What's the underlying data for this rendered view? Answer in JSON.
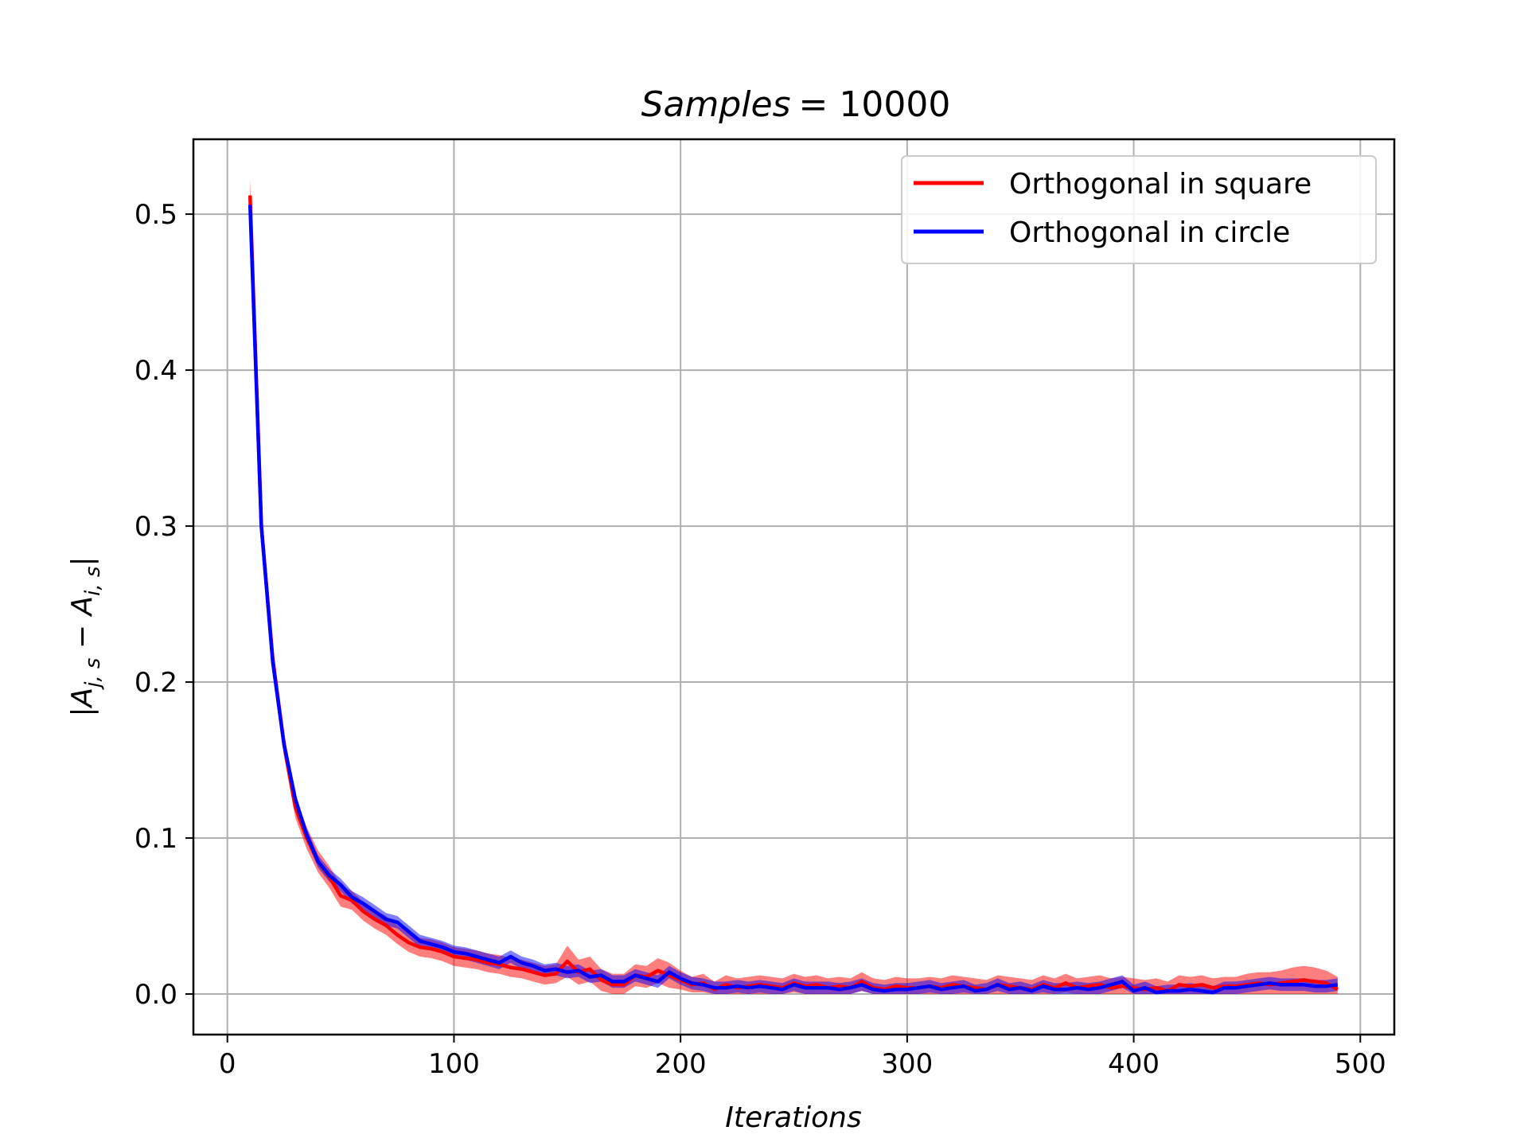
{
  "chart_data": {
    "type": "line",
    "title": "Samples = 10000",
    "title_math_var": "Samples",
    "title_value": "= 10000",
    "xlabel": "Iterations",
    "ylabel": "|A_{j,s} − A_{i,s}|",
    "ylabel_parts": {
      "open": "|A",
      "sub1": "j, s",
      "mid": " − A",
      "sub2": "i, s",
      "close": "|"
    },
    "xlim": [
      -15,
      515
    ],
    "ylim": [
      -0.026,
      0.548
    ],
    "xticks": [
      0,
      100,
      200,
      300,
      400,
      500
    ],
    "yticks": [
      0.0,
      0.1,
      0.2,
      0.3,
      0.4,
      0.5
    ],
    "ytick_labels": [
      "0.0",
      "0.1",
      "0.2",
      "0.3",
      "0.4",
      "0.5"
    ],
    "grid": true,
    "legend_position": "top-right",
    "x": [
      10,
      15,
      20,
      25,
      30,
      35,
      40,
      45,
      50,
      55,
      60,
      65,
      70,
      75,
      80,
      85,
      90,
      95,
      100,
      105,
      110,
      115,
      120,
      125,
      130,
      135,
      140,
      145,
      150,
      155,
      160,
      165,
      170,
      175,
      180,
      185,
      190,
      195,
      200,
      205,
      210,
      215,
      220,
      225,
      230,
      235,
      240,
      245,
      250,
      255,
      260,
      265,
      270,
      275,
      280,
      285,
      290,
      295,
      300,
      305,
      310,
      315,
      320,
      325,
      330,
      335,
      340,
      345,
      350,
      355,
      360,
      365,
      370,
      375,
      380,
      385,
      390,
      395,
      400,
      405,
      410,
      415,
      420,
      425,
      430,
      435,
      440,
      445,
      450,
      455,
      460,
      465,
      470,
      475,
      480,
      485,
      490
    ],
    "series": [
      {
        "name": "Orthogonal in square",
        "color": "#ff0000",
        "values": [
          0.512,
          0.3,
          0.215,
          0.16,
          0.12,
          0.1,
          0.085,
          0.075,
          0.063,
          0.06,
          0.053,
          0.048,
          0.044,
          0.038,
          0.033,
          0.03,
          0.029,
          0.027,
          0.024,
          0.023,
          0.022,
          0.02,
          0.019,
          0.017,
          0.016,
          0.014,
          0.012,
          0.013,
          0.021,
          0.014,
          0.016,
          0.009,
          0.006,
          0.006,
          0.012,
          0.011,
          0.015,
          0.012,
          0.009,
          0.006,
          0.007,
          0.003,
          0.006,
          0.004,
          0.005,
          0.006,
          0.005,
          0.004,
          0.007,
          0.005,
          0.006,
          0.004,
          0.005,
          0.004,
          0.008,
          0.004,
          0.003,
          0.005,
          0.004,
          0.004,
          0.005,
          0.004,
          0.006,
          0.005,
          0.004,
          0.003,
          0.006,
          0.005,
          0.004,
          0.003,
          0.006,
          0.004,
          0.007,
          0.004,
          0.005,
          0.006,
          0.004,
          0.005,
          0.004,
          0.003,
          0.004,
          0.002,
          0.006,
          0.005,
          0.006,
          0.004,
          0.005,
          0.005,
          0.006,
          0.007,
          0.006,
          0.007,
          0.008,
          0.009,
          0.008,
          0.007,
          0.003
        ],
        "band": [
          0.011,
          0.008,
          0.009,
          0.008,
          0.007,
          0.007,
          0.007,
          0.007,
          0.007,
          0.006,
          0.006,
          0.006,
          0.006,
          0.006,
          0.006,
          0.006,
          0.006,
          0.006,
          0.006,
          0.006,
          0.006,
          0.006,
          0.006,
          0.006,
          0.006,
          0.006,
          0.006,
          0.006,
          0.01,
          0.008,
          0.008,
          0.007,
          0.007,
          0.007,
          0.007,
          0.007,
          0.008,
          0.008,
          0.006,
          0.005,
          0.006,
          0.005,
          0.006,
          0.006,
          0.006,
          0.006,
          0.006,
          0.006,
          0.006,
          0.006,
          0.006,
          0.006,
          0.006,
          0.006,
          0.006,
          0.006,
          0.006,
          0.006,
          0.006,
          0.006,
          0.006,
          0.006,
          0.006,
          0.006,
          0.006,
          0.006,
          0.006,
          0.006,
          0.006,
          0.006,
          0.006,
          0.006,
          0.006,
          0.006,
          0.006,
          0.006,
          0.006,
          0.006,
          0.006,
          0.006,
          0.006,
          0.006,
          0.006,
          0.006,
          0.006,
          0.006,
          0.006,
          0.006,
          0.007,
          0.007,
          0.008,
          0.008,
          0.009,
          0.009,
          0.009,
          0.008,
          0.008
        ]
      },
      {
        "name": "Orthogonal in circle",
        "color": "#0000ff",
        "values": [
          0.506,
          0.3,
          0.213,
          0.16,
          0.125,
          0.102,
          0.085,
          0.076,
          0.07,
          0.062,
          0.058,
          0.053,
          0.048,
          0.046,
          0.04,
          0.034,
          0.032,
          0.03,
          0.027,
          0.026,
          0.024,
          0.022,
          0.02,
          0.024,
          0.02,
          0.018,
          0.015,
          0.016,
          0.014,
          0.015,
          0.011,
          0.012,
          0.008,
          0.008,
          0.012,
          0.01,
          0.008,
          0.014,
          0.01,
          0.007,
          0.006,
          0.004,
          0.004,
          0.005,
          0.004,
          0.005,
          0.004,
          0.003,
          0.006,
          0.004,
          0.004,
          0.004,
          0.003,
          0.004,
          0.006,
          0.003,
          0.002,
          0.003,
          0.003,
          0.004,
          0.005,
          0.003,
          0.004,
          0.005,
          0.002,
          0.003,
          0.006,
          0.003,
          0.004,
          0.002,
          0.005,
          0.003,
          0.003,
          0.004,
          0.003,
          0.004,
          0.006,
          0.008,
          0.002,
          0.004,
          0.001,
          0.002,
          0.002,
          0.003,
          0.002,
          0.001,
          0.004,
          0.004,
          0.005,
          0.006,
          0.007,
          0.006,
          0.006,
          0.006,
          0.005,
          0.005,
          0.006
        ],
        "band": [
          0.004,
          0.004,
          0.004,
          0.004,
          0.004,
          0.004,
          0.004,
          0.004,
          0.004,
          0.004,
          0.004,
          0.004,
          0.004,
          0.004,
          0.004,
          0.004,
          0.004,
          0.004,
          0.004,
          0.004,
          0.004,
          0.004,
          0.004,
          0.004,
          0.004,
          0.004,
          0.004,
          0.004,
          0.004,
          0.004,
          0.004,
          0.004,
          0.004,
          0.004,
          0.004,
          0.004,
          0.004,
          0.004,
          0.004,
          0.004,
          0.004,
          0.004,
          0.004,
          0.004,
          0.004,
          0.004,
          0.004,
          0.004,
          0.004,
          0.004,
          0.004,
          0.004,
          0.004,
          0.004,
          0.004,
          0.004,
          0.004,
          0.004,
          0.004,
          0.004,
          0.004,
          0.004,
          0.004,
          0.004,
          0.004,
          0.004,
          0.004,
          0.004,
          0.004,
          0.004,
          0.004,
          0.004,
          0.004,
          0.004,
          0.004,
          0.004,
          0.004,
          0.004,
          0.004,
          0.004,
          0.004,
          0.004,
          0.004,
          0.004,
          0.004,
          0.004,
          0.004,
          0.004,
          0.004,
          0.004,
          0.004,
          0.004,
          0.004,
          0.004,
          0.004,
          0.004,
          0.004
        ]
      }
    ]
  }
}
